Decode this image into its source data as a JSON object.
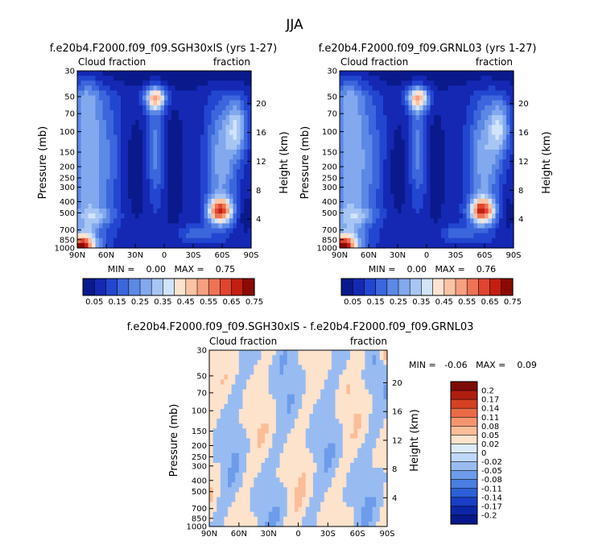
{
  "title": "JJA",
  "panels": [
    {
      "id": "p1",
      "title": "f.e20b4.F2000.f09_f09.SGH30xlS (yrs 1-27)",
      "label_left": "Cloud fraction",
      "label_right": "fraction",
      "ylabel": "Pressure (mb)",
      "ylabel_right": "Height (km)",
      "min_text": "MIN =    0.00   MAX =    0.75"
    },
    {
      "id": "p2",
      "title": "f.e20b4.F2000.f09_f09.GRNL03 (yrs 1-27)",
      "label_left": "Cloud fraction",
      "label_right": "fraction",
      "ylabel": "Pressure (mb)",
      "ylabel_right": "Height (km)",
      "min_text": "MIN =    0.00   MAX =    0.76"
    },
    {
      "id": "p3",
      "title": "f.e20b4.F2000.f09_f09.SGH30xlS - f.e20b4.F2000.f09_f09.GRNL03",
      "label_left": "Cloud fraction",
      "label_right": "fraction",
      "ylabel": "Pressure (mb)",
      "ylabel_right": "Height (km)",
      "min_text": "MIN =   -0.06   MAX =    0.09"
    }
  ],
  "colors": {
    "seq": [
      "#0a1a8c",
      "#1428b4",
      "#2246d0",
      "#3c66dc",
      "#5c88e6",
      "#82a8ee",
      "#a8c6f4",
      "#d2e4fa",
      "#fde3cf",
      "#fbc3a4",
      "#f6a080",
      "#ee7356",
      "#e04530",
      "#c41e12",
      "#8c0a06"
    ],
    "diff": [
      "#08188a",
      "#0c26a8",
      "#1a3ec6",
      "#2c5ed8",
      "#4a7ee2",
      "#6e9cea",
      "#98bcf2",
      "#c0d8f8",
      "#dcebfa",
      "#fde2cc",
      "#fbbd98",
      "#f5956e",
      "#ea6a46",
      "#d44024",
      "#b01e0e",
      "#7e0c06"
    ]
  },
  "chart_data": [
    {
      "type": "heatmap",
      "title": "f.e20b4.F2000.f09_f09.SGH30xlS (yrs 1-27)",
      "variable": "Cloud fraction",
      "xlabel": "",
      "ylabel": "Pressure (mb)",
      "ylabel_right": "Height (km)",
      "x_ticks": [
        "90N",
        "60N",
        "30N",
        "0",
        "30S",
        "60S",
        "90S"
      ],
      "x_values": [
        90,
        60,
        30,
        0,
        -30,
        -60,
        -90
      ],
      "y_ticks": [
        30,
        50,
        70,
        100,
        150,
        200,
        250,
        300,
        400,
        500,
        700,
        850,
        1000
      ],
      "y_right_ticks": [
        20,
        16,
        12,
        8,
        4
      ],
      "ylim": [
        1000,
        30
      ],
      "min": 0.0,
      "max": 0.75,
      "colorbar_labels": [
        "0.05",
        "0.15",
        "0.25",
        "0.35",
        "0.45",
        "0.55",
        "0.65",
        "0.75"
      ],
      "colorbar_levels": [
        0.05,
        0.1,
        0.15,
        0.2,
        0.25,
        0.3,
        0.35,
        0.4,
        0.45,
        0.5,
        0.55,
        0.6,
        0.65,
        0.7,
        0.75
      ]
    },
    {
      "type": "heatmap",
      "title": "f.e20b4.F2000.f09_f09.GRNL03 (yrs 1-27)",
      "variable": "Cloud fraction",
      "xlabel": "",
      "ylabel": "Pressure (mb)",
      "ylabel_right": "Height (km)",
      "x_ticks": [
        "90N",
        "60N",
        "30N",
        "0",
        "30S",
        "60S",
        "90S"
      ],
      "x_values": [
        90,
        60,
        30,
        0,
        -30,
        -60,
        -90
      ],
      "y_ticks": [
        30,
        50,
        70,
        100,
        150,
        200,
        250,
        300,
        400,
        500,
        700,
        850,
        1000
      ],
      "y_right_ticks": [
        20,
        16,
        12,
        8,
        4
      ],
      "ylim": [
        1000,
        30
      ],
      "min": 0.0,
      "max": 0.76,
      "colorbar_labels": [
        "0.05",
        "0.15",
        "0.25",
        "0.35",
        "0.45",
        "0.55",
        "0.65",
        "0.75"
      ],
      "colorbar_levels": [
        0.05,
        0.1,
        0.15,
        0.2,
        0.25,
        0.3,
        0.35,
        0.4,
        0.45,
        0.5,
        0.55,
        0.6,
        0.65,
        0.7,
        0.75
      ]
    },
    {
      "type": "heatmap",
      "title": "f.e20b4.F2000.f09_f09.SGH30xlS - f.e20b4.F2000.f09_f09.GRNL03",
      "variable": "Cloud fraction",
      "xlabel": "",
      "ylabel": "Pressure (mb)",
      "ylabel_right": "Height (km)",
      "x_ticks": [
        "90N",
        "60N",
        "30N",
        "0",
        "30S",
        "60S",
        "90S"
      ],
      "x_values": [
        90,
        60,
        30,
        0,
        -30,
        -60,
        -90
      ],
      "y_ticks": [
        30,
        50,
        70,
        100,
        150,
        200,
        250,
        300,
        400,
        500,
        700,
        850,
        1000
      ],
      "y_right_ticks": [
        20,
        16,
        12,
        8,
        4
      ],
      "ylim": [
        1000,
        30
      ],
      "min": -0.06,
      "max": 0.09,
      "colorbar_labels": [
        "0.2",
        "0.17",
        "0.14",
        "0.11",
        "0.08",
        "0.05",
        "0.02",
        "0",
        "-0.02",
        "-0.05",
        "-0.08",
        "-0.11",
        "-0.14",
        "-0.17",
        "-0.2"
      ],
      "colorbar_levels": [
        0.2,
        0.17,
        0.14,
        0.11,
        0.08,
        0.05,
        0.02,
        0,
        -0.02,
        -0.05,
        -0.08,
        -0.11,
        -0.14,
        -0.17,
        -0.2
      ]
    }
  ]
}
